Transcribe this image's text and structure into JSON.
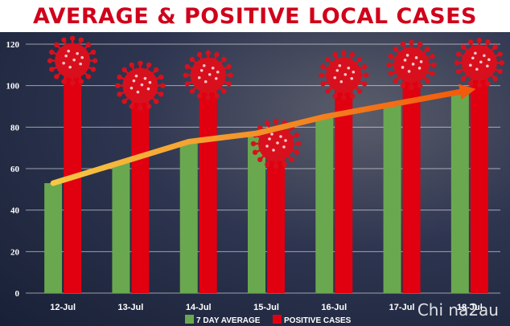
{
  "title": "AVERAGE & POSITIVE LOCAL CASES",
  "watermark": "Chi na2au",
  "colors": {
    "title": "#d0021b",
    "average_bar": "#6aa84f",
    "positive_bar": "#e00010",
    "virus": "#d8101d",
    "trend_start": "#f6c744",
    "trend_end": "#f25a0c"
  },
  "chart_data": {
    "type": "bar",
    "title": "AVERAGE & POSITIVE LOCAL CASES",
    "xlabel": "",
    "ylabel": "",
    "categories": [
      "12-Jul",
      "13-Jul",
      "14-Jul",
      "15-Jul",
      "16-Jul",
      "17-Jul",
      "18-Jul"
    ],
    "ylim": [
      0,
      120
    ],
    "yticks": [
      0,
      20,
      40,
      60,
      80,
      100,
      120
    ],
    "grid": true,
    "legend_position": "bottom-center",
    "series": [
      {
        "name": "7 DAY AVERAGE",
        "values": [
          53,
          63,
          73,
          77,
          85,
          91,
          97
        ]
      },
      {
        "name": "POSITIVE CASES",
        "values": [
          112,
          100,
          105,
          72,
          105,
          110,
          111
        ]
      }
    ],
    "trend_line": {
      "series": "7 DAY AVERAGE",
      "arrow": true
    }
  }
}
